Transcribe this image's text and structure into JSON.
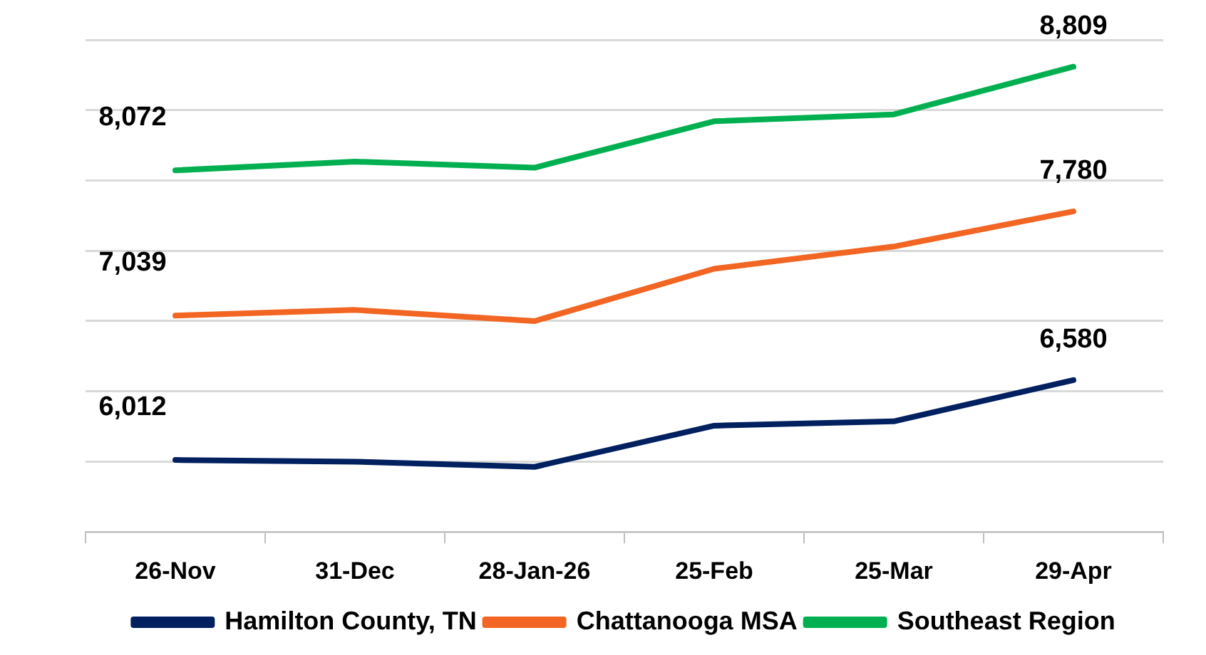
{
  "chart_data": {
    "type": "line",
    "categories": [
      "26-Nov",
      "31-Dec",
      "28-Jan-26",
      "25-Feb",
      "25-Mar",
      "29-Apr"
    ],
    "ylim": [
      5500,
      9000
    ],
    "yticks": [
      {
        "value": 5500,
        "label": null
      },
      {
        "value": 6000,
        "label": null
      },
      {
        "value": 6500,
        "label": null
      },
      {
        "value": 7000,
        "label": null
      },
      {
        "value": 7500,
        "label": null
      },
      {
        "value": 8000,
        "label": null
      },
      {
        "value": 8500,
        "label": null
      },
      {
        "value": 9000,
        "label": null
      }
    ],
    "tick_labels": "x",
    "grid": "y",
    "legend": "bottom",
    "marker": "none",
    "line_style": "solid",
    "series": [
      {
        "name": "Hamilton County, TN",
        "color": "#002060",
        "values": [
          6012,
          6000,
          5963,
          6256,
          6287,
          6580
        ],
        "value_labels": [
          "6,012",
          null,
          null,
          null,
          null,
          "6,580"
        ]
      },
      {
        "name": "Chattanooga MSA",
        "color": "#f26522",
        "values": [
          7039,
          7079,
          7000,
          7372,
          7530,
          7780
        ],
        "value_labels": [
          "7,039",
          null,
          null,
          null,
          null,
          "7,780"
        ]
      },
      {
        "name": "Southeast Region",
        "color": "#00b050",
        "values": [
          8072,
          8134,
          8091,
          8421,
          8470,
          8809
        ],
        "value_labels": [
          "8,072",
          null,
          null,
          null,
          null,
          "8,809"
        ]
      }
    ]
  }
}
